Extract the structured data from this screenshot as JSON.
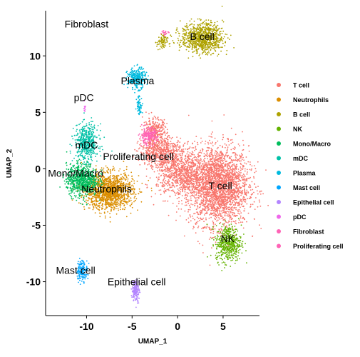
{
  "chart_data": {
    "type": "scatter",
    "title": "",
    "xlabel": "UMAP_1",
    "ylabel": "UMAP_2",
    "xlim": [
      -14.5,
      9
    ],
    "ylim": [
      -13,
      14
    ],
    "xticks": [
      -10,
      -5,
      0,
      5
    ],
    "yticks": [
      -10,
      -5,
      0,
      5,
      10
    ],
    "xtick_labels": [
      "-10",
      "-5",
      "0",
      "5"
    ],
    "ytick_labels": [
      "-10",
      "-5",
      "0",
      "5",
      "10"
    ],
    "legend_position": "right",
    "grid": false,
    "series": [
      {
        "name": "T cell",
        "color": "#F8766D"
      },
      {
        "name": "Neutrophils",
        "color": "#DB8E00"
      },
      {
        "name": "B cell",
        "color": "#AEA200"
      },
      {
        "name": "NK",
        "color": "#64B200"
      },
      {
        "name": "Mono/Macro",
        "color": "#00BD5C"
      },
      {
        "name": "mDC",
        "color": "#00C1A7"
      },
      {
        "name": "Plasma",
        "color": "#00BADE"
      },
      {
        "name": "Mast cell",
        "color": "#00A6FF"
      },
      {
        "name": "Epithelial cell",
        "color": "#B385FF"
      },
      {
        "name": "pDC",
        "color": "#EF67EB"
      },
      {
        "name": "Fibroblast",
        "color": "#FF63B6"
      },
      {
        "name": "Proliferating cell",
        "color": "#FF63B6"
      }
    ],
    "cluster_labels": [
      {
        "text": "Fibroblast",
        "x": -10.0,
        "y": 12.5
      },
      {
        "text": "B cell",
        "x": 2.7,
        "y": 11.4
      },
      {
        "text": "Plasma",
        "x": -4.4,
        "y": 7.5
      },
      {
        "text": "pDC",
        "x": -10.3,
        "y": 6.0
      },
      {
        "text": "mDC",
        "x": -10.0,
        "y": 1.8
      },
      {
        "text": "Proliferating cell",
        "x": -4.3,
        "y": 0.8
      },
      {
        "text": "Mono/Macro",
        "x": -11.2,
        "y": -0.7
      },
      {
        "text": "Neutrophils",
        "x": -7.8,
        "y": -2.1
      },
      {
        "text": "T cell",
        "x": 4.7,
        "y": -1.8
      },
      {
        "text": "NK",
        "x": 5.5,
        "y": -6.5
      },
      {
        "text": "Mast cell",
        "x": -11.2,
        "y": -9.3
      },
      {
        "text": "Epithelial cell",
        "x": -4.5,
        "y": -10.3
      }
    ],
    "clusters": [
      {
        "series": 0,
        "parts": [
          [
            4.5,
            -1.5,
            3.3,
            3.5,
            2600
          ],
          [
            0.5,
            -0.5,
            2.8,
            2.0,
            900
          ],
          [
            -1.8,
            1.5,
            2.4,
            1.3,
            600
          ],
          [
            -2.5,
            3.3,
            1.3,
            1.2,
            300
          ]
        ]
      },
      {
        "series": 1,
        "parts": [
          [
            -7.5,
            -2.0,
            2.6,
            1.6,
            1400
          ]
        ]
      },
      {
        "series": 2,
        "parts": [
          [
            2.7,
            11.6,
            2.3,
            1.3,
            900
          ],
          [
            -1.7,
            11.2,
            0.6,
            0.7,
            80
          ]
        ]
      },
      {
        "series": 3,
        "parts": [
          [
            5.6,
            -6.6,
            1.4,
            1.6,
            500
          ]
        ]
      },
      {
        "series": 4,
        "parts": [
          [
            -10.5,
            -1.0,
            1.7,
            1.4,
            800
          ]
        ]
      },
      {
        "series": 5,
        "parts": [
          [
            -10.0,
            2.3,
            1.3,
            1.6,
            500
          ]
        ]
      },
      {
        "series": 6,
        "parts": [
          [
            -4.5,
            8.0,
            1.0,
            0.9,
            300
          ],
          [
            -4.2,
            5.6,
            0.3,
            0.9,
            60
          ]
        ]
      },
      {
        "series": 7,
        "parts": [
          [
            -10.5,
            -9.0,
            0.6,
            0.9,
            150
          ]
        ]
      },
      {
        "series": 8,
        "parts": [
          [
            -4.6,
            -10.8,
            0.4,
            1.0,
            150
          ]
        ]
      },
      {
        "series": 9,
        "parts": [
          [
            -10.2,
            5.4,
            0.1,
            0.4,
            12
          ]
        ]
      },
      {
        "series": 10,
        "parts": [
          [
            -1.5,
            12.0,
            0.5,
            0.3,
            20
          ]
        ]
      },
      {
        "series": 11,
        "parts": [
          [
            -3.2,
            2.9,
            1.0,
            0.7,
            200
          ]
        ]
      }
    ]
  }
}
